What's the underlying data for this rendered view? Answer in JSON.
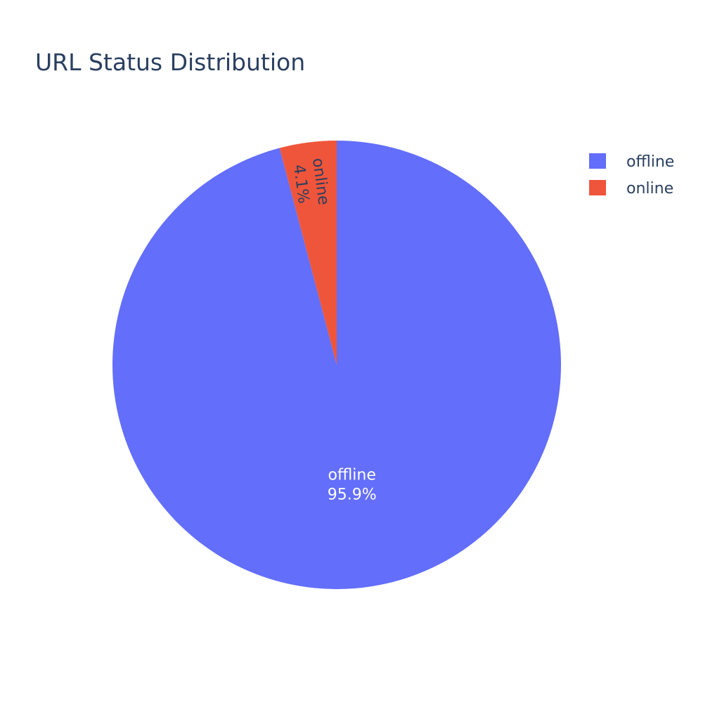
{
  "chart_data": {
    "type": "pie",
    "title": "URL Status Distribution",
    "categories": [
      "offline",
      "online"
    ],
    "values": [
      95.9,
      4.1
    ],
    "value_format": "percent",
    "colors": {
      "offline": "#636efa",
      "online": "#ef553b"
    },
    "label_colors": {
      "offline": "#ffffff",
      "online": "#2a3f5f"
    },
    "start_angle_direction": "clockwise from top",
    "legend": {
      "position": "top-right",
      "entries": [
        "offline",
        "online"
      ]
    }
  }
}
